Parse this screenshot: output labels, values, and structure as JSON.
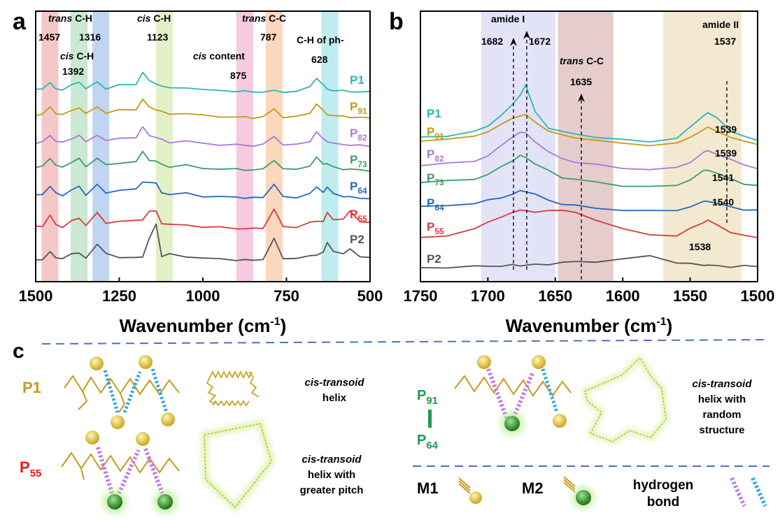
{
  "panels": {
    "a": "a",
    "b": "b",
    "c": "c"
  },
  "colors": {
    "P1": "#2bb7b5",
    "P91": "#c49a12",
    "P82": "#a97ad6",
    "P73": "#3b9e66",
    "P64": "#2667c0",
    "P55": "#d93a3a",
    "P2": "#555555",
    "label_orange": "#c89a1c",
    "label_green": "#1f9a4d",
    "label_red": "#e01b1b"
  },
  "chart_data": [
    {
      "type": "line",
      "panel": "a",
      "xlabel_main": "Wavenumber (cm",
      "xlabel_sup": "-1",
      "xlabel_end": ")",
      "xlim": [
        1500,
        500
      ],
      "x_reversed": true,
      "xticks": [
        1500,
        1250,
        1000,
        750,
        500
      ],
      "x": [
        1500,
        1480,
        1457,
        1440,
        1420,
        1392,
        1370,
        1350,
        1316,
        1290,
        1250,
        1200,
        1180,
        1160,
        1140,
        1123,
        1100,
        1050,
        1000,
        950,
        900,
        875,
        850,
        820,
        787,
        760,
        720,
        680,
        660,
        640,
        628,
        610,
        580,
        560,
        530,
        500
      ],
      "series": [
        {
          "name": "P1",
          "values": [
            0.1,
            0.12,
            0.25,
            0.12,
            0.08,
            0.2,
            0.3,
            0.1,
            0.28,
            0.12,
            0.2,
            0.22,
            0.55,
            0.3,
            0.25,
            0.18,
            0.12,
            0.15,
            0.08,
            0.06,
            0.05,
            0.04,
            0.03,
            0.03,
            0.05,
            0.03,
            0.04,
            0.15,
            0.4,
            0.2,
            0.1,
            0.07,
            0.05,
            0.04,
            0.03,
            0.02
          ]
        },
        {
          "name": "P91",
          "values": [
            0.1,
            0.12,
            0.3,
            0.15,
            0.1,
            0.22,
            0.3,
            0.12,
            0.32,
            0.15,
            0.22,
            0.25,
            0.5,
            0.3,
            0.25,
            0.18,
            0.12,
            0.15,
            0.08,
            0.06,
            0.05,
            0.04,
            0.03,
            0.05,
            0.25,
            0.05,
            0.05,
            0.15,
            0.4,
            0.2,
            0.12,
            0.08,
            0.06,
            0.05,
            0.03,
            0.02
          ]
        },
        {
          "name": "P82",
          "values": [
            0.1,
            0.12,
            0.3,
            0.15,
            0.1,
            0.22,
            0.3,
            0.12,
            0.32,
            0.15,
            0.22,
            0.25,
            0.5,
            0.3,
            0.25,
            0.18,
            0.12,
            0.15,
            0.08,
            0.06,
            0.05,
            0.04,
            0.03,
            0.05,
            0.28,
            0.05,
            0.05,
            0.15,
            0.38,
            0.2,
            0.15,
            0.08,
            0.06,
            0.05,
            0.03,
            0.02
          ]
        },
        {
          "name": "P73",
          "values": [
            0.1,
            0.12,
            0.35,
            0.15,
            0.1,
            0.25,
            0.32,
            0.12,
            0.35,
            0.15,
            0.22,
            0.25,
            0.5,
            0.3,
            0.25,
            0.18,
            0.12,
            0.15,
            0.08,
            0.06,
            0.05,
            0.04,
            0.03,
            0.05,
            0.3,
            0.05,
            0.05,
            0.15,
            0.35,
            0.2,
            0.2,
            0.1,
            0.06,
            0.05,
            0.03,
            0.02
          ]
        },
        {
          "name": "P64",
          "values": [
            0.1,
            0.12,
            0.35,
            0.15,
            0.1,
            0.25,
            0.32,
            0.12,
            0.38,
            0.15,
            0.25,
            0.25,
            0.45,
            0.45,
            0.4,
            0.18,
            0.12,
            0.15,
            0.08,
            0.06,
            0.05,
            0.04,
            0.03,
            0.05,
            0.4,
            0.05,
            0.05,
            0.15,
            0.3,
            0.2,
            0.3,
            0.15,
            0.08,
            0.05,
            0.03,
            0.02
          ]
        },
        {
          "name": "P55",
          "values": [
            0.1,
            0.12,
            0.4,
            0.15,
            0.1,
            0.25,
            0.32,
            0.15,
            0.45,
            0.2,
            0.25,
            0.25,
            0.3,
            0.5,
            0.5,
            0.2,
            0.15,
            0.15,
            0.1,
            0.08,
            0.06,
            0.05,
            0.05,
            0.08,
            0.55,
            0.1,
            0.1,
            0.2,
            0.25,
            0.25,
            0.45,
            0.3,
            0.3,
            0.5,
            0.25,
            0.2
          ]
        },
        {
          "name": "P2",
          "values": [
            0.05,
            0.08,
            0.25,
            0.12,
            0.1,
            0.2,
            0.25,
            0.1,
            0.45,
            0.25,
            0.1,
            0.12,
            0.15,
            0.6,
            1.0,
            0.15,
            0.2,
            0.15,
            0.1,
            0.08,
            0.06,
            0.05,
            0.05,
            0.08,
            0.6,
            0.1,
            0.1,
            0.15,
            0.2,
            0.25,
            0.5,
            0.3,
            0.2,
            0.35,
            0.15,
            0.1
          ]
        }
      ],
      "bands": [
        {
          "label_italic": "trans",
          "label_rest": " C-H",
          "value": "1457",
          "center": 1457,
          "color": "#f2b6b6"
        },
        {
          "label_italic": "cis",
          "label_rest": " C-H",
          "value": "1392",
          "center": 1370,
          "color": "#b9e0c3"
        },
        {
          "label_italic": "",
          "label_rest": "",
          "value": "1316",
          "center": 1305,
          "color": "#a9c7ee"
        },
        {
          "label_italic": "cis",
          "label_rest": " C-H",
          "value": "1123",
          "center": 1115,
          "color": "#d8ebb4"
        },
        {
          "label_italic": "cis",
          "label_rest": " content",
          "value": "875",
          "center": 875,
          "color": "#f4b8d8"
        },
        {
          "label_italic": "trans",
          "label_rest": " C-C",
          "value": "787",
          "center": 787,
          "color": "#f9caa8"
        },
        {
          "label_italic": "",
          "label_rest": "C-H of ph-",
          "value": "628",
          "center": 620,
          "color": "#a8e6ea"
        }
      ],
      "series_labels": [
        {
          "base": "P1",
          "sub": ""
        },
        {
          "base": "P",
          "sub": "91"
        },
        {
          "base": "P",
          "sub": "82"
        },
        {
          "base": "P",
          "sub": "73"
        },
        {
          "base": "P",
          "sub": "64"
        },
        {
          "base": "P",
          "sub": "55"
        },
        {
          "base": "P2",
          "sub": ""
        }
      ]
    },
    {
      "type": "line",
      "panel": "b",
      "xlabel_main": "Wavenumber (cm",
      "xlabel_sup": "-1",
      "xlabel_end": ")",
      "xlim": [
        1750,
        1500
      ],
      "x_reversed": true,
      "xticks": [
        1750,
        1700,
        1650,
        1600,
        1550,
        1500
      ],
      "x": [
        1750,
        1730,
        1710,
        1700,
        1690,
        1682,
        1676,
        1672,
        1665,
        1655,
        1645,
        1635,
        1620,
        1600,
        1580,
        1560,
        1550,
        1540,
        1537,
        1530,
        1520,
        1510,
        1500
      ],
      "series": [
        {
          "name": "P1",
          "values": [
            0.1,
            0.12,
            0.18,
            0.28,
            0.45,
            0.6,
            0.78,
            0.92,
            0.5,
            0.25,
            0.18,
            0.15,
            0.1,
            0.05,
            0.03,
            0.08,
            0.25,
            0.45,
            0.48,
            0.4,
            0.2,
            0.1,
            0.05
          ]
        },
        {
          "name": "P91",
          "values": [
            0.1,
            0.12,
            0.16,
            0.25,
            0.35,
            0.45,
            0.5,
            0.5,
            0.4,
            0.25,
            0.18,
            0.15,
            0.1,
            0.05,
            0.03,
            0.05,
            0.15,
            0.28,
            0.3,
            0.25,
            0.15,
            0.08,
            0.05
          ]
        },
        {
          "name": "P82",
          "values": [
            0.1,
            0.12,
            0.16,
            0.25,
            0.4,
            0.55,
            0.62,
            0.6,
            0.48,
            0.3,
            0.2,
            0.15,
            0.1,
            0.05,
            0.03,
            0.05,
            0.15,
            0.3,
            0.32,
            0.28,
            0.18,
            0.1,
            0.05
          ]
        },
        {
          "name": "P73",
          "values": [
            0.1,
            0.12,
            0.16,
            0.22,
            0.35,
            0.45,
            0.52,
            0.5,
            0.4,
            0.28,
            0.18,
            0.15,
            0.1,
            0.05,
            0.03,
            0.05,
            0.15,
            0.28,
            0.3,
            0.25,
            0.15,
            0.08,
            0.05
          ]
        },
        {
          "name": "P64",
          "values": [
            0.1,
            0.12,
            0.16,
            0.2,
            0.25,
            0.3,
            0.35,
            0.35,
            0.3,
            0.2,
            0.15,
            0.12,
            0.08,
            0.05,
            0.03,
            0.05,
            0.1,
            0.18,
            0.2,
            0.15,
            0.1,
            0.06,
            0.04
          ]
        },
        {
          "name": "P55",
          "values": [
            0.1,
            0.15,
            0.25,
            0.35,
            0.45,
            0.5,
            0.55,
            0.55,
            0.5,
            0.55,
            0.55,
            0.5,
            0.4,
            0.25,
            0.15,
            0.15,
            0.25,
            0.35,
            0.4,
            0.3,
            0.2,
            0.15,
            0.1
          ]
        },
        {
          "name": "P2",
          "values": [
            0.02,
            0.03,
            0.04,
            0.05,
            0.05,
            0.06,
            0.06,
            0.06,
            0.07,
            0.08,
            0.1,
            0.12,
            0.12,
            0.15,
            0.22,
            0.1,
            0.08,
            0.07,
            0.06,
            0.05,
            0.04,
            0.05,
            0.04
          ]
        }
      ],
      "bands": [
        {
          "label": "amide I",
          "from": 1705,
          "to": 1650,
          "color": "#d9d9f6"
        },
        {
          "label": "trans C-C",
          "from": 1648,
          "to": 1607,
          "color": "#dcbcbc"
        },
        {
          "label": "amide II",
          "from": 1570,
          "to": 1512,
          "color": "#efe1c2"
        }
      ],
      "annotations": {
        "amide1_title": "amide I",
        "amide1_a": "1682",
        "amide1_b": "1672",
        "transcc_italic": "trans",
        "transcc_rest": " C-C",
        "transcc_value": "1635",
        "amide2_title": "amide II",
        "amide2_value": "1537",
        "peaks": [
          "1539",
          "1539",
          "1541",
          "1540",
          "1538"
        ]
      },
      "series_labels": [
        {
          "base": "P1",
          "sub": ""
        },
        {
          "base": "P",
          "sub": "91"
        },
        {
          "base": "P",
          "sub": "82"
        },
        {
          "base": "P",
          "sub": "73"
        },
        {
          "base": "P",
          "sub": "64"
        },
        {
          "base": "P",
          "sub": "55"
        },
        {
          "base": "P2",
          "sub": ""
        }
      ]
    }
  ],
  "schematic": {
    "p1_label": "P1",
    "p1_text": [
      "cis-transoid",
      "helix"
    ],
    "p55_base": "P",
    "p55_sub": "55",
    "p55_text": [
      "cis-transoid",
      "helix with",
      "greater pitch"
    ],
    "p91_base": "P",
    "p91_sub": "91",
    "p64_base": "P",
    "p64_sub": "64",
    "p9164_text": [
      "cis-transoid",
      "helix with",
      "random",
      "structure"
    ],
    "m1_label": "M1",
    "m2_label": "M2",
    "hbond_text": [
      "hydrogen",
      "bond"
    ]
  }
}
